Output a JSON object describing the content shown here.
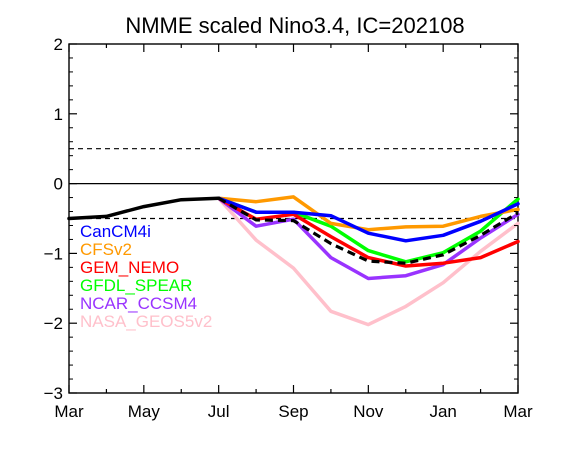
{
  "chart_data": {
    "type": "line",
    "title": "NMME scaled Nino3.4, IC=202108",
    "xlabel": "",
    "ylabel": "",
    "x_tick_labels": [
      "Mar",
      "May",
      "Jul",
      "Sep",
      "Nov",
      "Jan",
      "Mar"
    ],
    "x_tick_index": [
      0,
      2,
      4,
      6,
      8,
      10,
      12
    ],
    "xlim": [
      0,
      12
    ],
    "ylim": [
      -3,
      2
    ],
    "y_ticks": [
      2,
      1,
      0,
      -1,
      -2,
      -3
    ],
    "y_tick_labels": [
      "2",
      "1",
      "0",
      "−1",
      "−2",
      "−3"
    ],
    "reference_lines": [
      {
        "y": 0,
        "style": "solid"
      },
      {
        "y": 0.5,
        "style": "dashed"
      },
      {
        "y": -0.5,
        "style": "dashed"
      }
    ],
    "observed": {
      "color": "#000000",
      "x": [
        0,
        1,
        2,
        3,
        4
      ],
      "values": [
        -0.5,
        -0.47,
        -0.33,
        -0.23,
        -0.21
      ]
    },
    "series": [
      {
        "name": "CanCM4i",
        "color": "#0000ff",
        "x": [
          4,
          5,
          6,
          7,
          8,
          9,
          10,
          11,
          12
        ],
        "values": [
          -0.21,
          -0.41,
          -0.41,
          -0.46,
          -0.71,
          -0.82,
          -0.74,
          -0.54,
          -0.29
        ]
      },
      {
        "name": "CFSv2",
        "color": "#ff9900",
        "x": [
          4,
          5,
          6,
          7,
          8,
          9,
          10,
          11,
          12
        ],
        "values": [
          -0.21,
          -0.26,
          -0.19,
          -0.57,
          -0.66,
          -0.62,
          -0.61,
          -0.47,
          -0.37
        ]
      },
      {
        "name": "GEM_NEMO",
        "color": "#ff0000",
        "x": [
          4,
          5,
          6,
          7,
          8,
          9,
          10,
          11,
          12
        ],
        "values": [
          -0.21,
          -0.51,
          -0.44,
          -0.76,
          -1.06,
          -1.18,
          -1.14,
          -1.06,
          -0.83
        ]
      },
      {
        "name": "GFDL_SPEAR",
        "color": "#00ff00",
        "x": [
          4,
          5,
          6,
          7,
          8,
          9,
          10,
          11,
          12
        ],
        "values": [
          -0.21,
          -0.41,
          -0.41,
          -0.61,
          -0.96,
          -1.12,
          -0.99,
          -0.68,
          -0.22
        ]
      },
      {
        "name": "NCAR_CCSM4",
        "color": "#9933ff",
        "x": [
          4,
          5,
          6,
          7,
          8,
          9,
          10,
          11,
          12
        ],
        "values": [
          -0.21,
          -0.61,
          -0.51,
          -1.06,
          -1.36,
          -1.32,
          -1.16,
          -0.78,
          -0.44
        ]
      },
      {
        "name": "NASA_GEOS5v2",
        "color": "#ffc0cb",
        "x": [
          4,
          5,
          6,
          7,
          8,
          9,
          10,
          11,
          12
        ],
        "values": [
          -0.21,
          -0.81,
          -1.21,
          -1.83,
          -2.02,
          -1.76,
          -1.42,
          -0.97,
          -0.57
        ]
      }
    ],
    "ensemble_mean": {
      "color": "#000000",
      "style": "dashed",
      "x": [
        4,
        5,
        6,
        7,
        8,
        9,
        10,
        11,
        12
      ],
      "values": [
        -0.21,
        -0.52,
        -0.53,
        -0.86,
        -1.11,
        -1.14,
        -1.02,
        -0.74,
        -0.42
      ]
    },
    "legend_placement": "lower-left",
    "grid": false
  }
}
